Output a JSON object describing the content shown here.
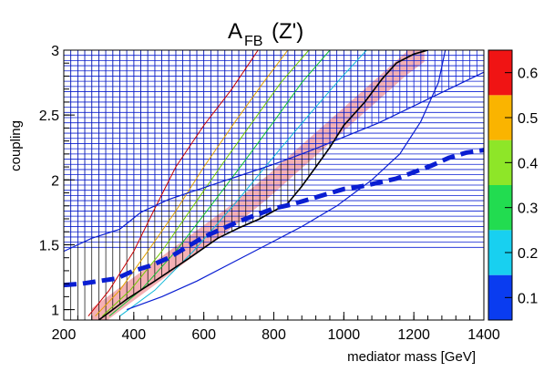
{
  "chart_data": {
    "type": "heatmap",
    "title": "A",
    "title_subscript": "FB",
    "title_suffix": " (Z')",
    "xlabel": "mediator mass [GeV]",
    "ylabel": "coupling",
    "xlim": [
      200,
      1400
    ],
    "ylim": [
      0.92,
      3.0
    ],
    "x_ticks": [
      200,
      400,
      600,
      800,
      1000,
      1200,
      1400
    ],
    "y_ticks": [
      1,
      1.5,
      2,
      2.5,
      3
    ],
    "x_tick_labels": [
      "200",
      "400",
      "600",
      "800",
      "1000",
      "1200",
      "1400"
    ],
    "y_tick_labels": [
      "1",
      "1.5",
      "2",
      "2.5",
      "3"
    ],
    "colorbar": {
      "ticks": [
        0.1,
        0.2,
        0.3,
        0.4,
        0.5,
        0.6
      ],
      "tick_labels": [
        "0.1",
        "0.2",
        "0.3",
        "0.4",
        "0.5",
        "0.6"
      ],
      "range": [
        0.05,
        0.65
      ],
      "bands": [
        {
          "from": 0.05,
          "to": 0.15,
          "color": "#0a3cf0"
        },
        {
          "from": 0.15,
          "to": 0.25,
          "color": "#18d0f0"
        },
        {
          "from": 0.25,
          "to": 0.35,
          "color": "#22dc50"
        },
        {
          "from": 0.35,
          "to": 0.45,
          "color": "#8ee628"
        },
        {
          "from": 0.45,
          "to": 0.55,
          "color": "#fab400"
        },
        {
          "from": 0.55,
          "to": 0.65,
          "color": "#f01414"
        }
      ]
    },
    "contour_lines": [
      {
        "level": 0.6,
        "color": "#c80000",
        "points": [
          [
            270,
            0.95
          ],
          [
            330,
            1.15
          ],
          [
            400,
            1.45
          ],
          [
            460,
            1.78
          ],
          [
            520,
            2.1
          ],
          [
            600,
            2.42
          ],
          [
            680,
            2.7
          ],
          [
            755,
            3.0
          ]
        ]
      },
      {
        "level": 0.5,
        "color": "#e0a000",
        "points": [
          [
            290,
            0.95
          ],
          [
            360,
            1.15
          ],
          [
            440,
            1.45
          ],
          [
            520,
            1.76
          ],
          [
            600,
            2.1
          ],
          [
            690,
            2.45
          ],
          [
            770,
            2.75
          ],
          [
            840,
            3.0
          ]
        ]
      },
      {
        "level": 0.4,
        "color": "#70c800",
        "points": [
          [
            310,
            0.95
          ],
          [
            390,
            1.15
          ],
          [
            480,
            1.45
          ],
          [
            570,
            1.8
          ],
          [
            660,
            2.15
          ],
          [
            740,
            2.45
          ],
          [
            820,
            2.75
          ],
          [
            900,
            3.0
          ]
        ]
      },
      {
        "level": 0.3,
        "color": "#10c030",
        "points": [
          [
            330,
            0.95
          ],
          [
            420,
            1.15
          ],
          [
            520,
            1.45
          ],
          [
            620,
            1.8
          ],
          [
            710,
            2.12
          ],
          [
            800,
            2.45
          ],
          [
            880,
            2.75
          ],
          [
            960,
            3.0
          ]
        ]
      },
      {
        "level": 0.2,
        "color": "#10b8d8",
        "points": [
          [
            360,
            0.95
          ],
          [
            460,
            1.15
          ],
          [
            570,
            1.45
          ],
          [
            690,
            1.82
          ],
          [
            800,
            2.18
          ],
          [
            900,
            2.5
          ],
          [
            990,
            2.78
          ],
          [
            1065,
            3.0
          ]
        ]
      }
    ],
    "observed_limit": {
      "color": "#000000",
      "points": [
        [
          300,
          0.92
        ],
        [
          380,
          1.08
        ],
        [
          460,
          1.22
        ],
        [
          560,
          1.4
        ],
        [
          640,
          1.55
        ],
        [
          700,
          1.63
        ],
        [
          760,
          1.7
        ],
        [
          840,
          1.82
        ],
        [
          880,
          1.95
        ],
        [
          920,
          2.1
        ],
        [
          960,
          2.25
        ],
        [
          1000,
          2.42
        ],
        [
          1060,
          2.6
        ],
        [
          1110,
          2.78
        ],
        [
          1150,
          2.9
        ],
        [
          1200,
          2.97
        ],
        [
          1240,
          3.0
        ]
      ]
    },
    "expected_band": {
      "color": "#f4b0b4",
      "center": [
        [
          280,
          0.92
        ],
        [
          380,
          1.12
        ],
        [
          480,
          1.32
        ],
        [
          580,
          1.52
        ],
        [
          680,
          1.72
        ],
        [
          780,
          1.94
        ],
        [
          880,
          2.18
        ],
        [
          980,
          2.42
        ],
        [
          1080,
          2.66
        ],
        [
          1180,
          2.9
        ],
        [
          1230,
          3.0
        ]
      ],
      "half_width": 0.09
    },
    "limit_line_1": {
      "color": "#0a1ed2",
      "points": [
        [
          200,
          1.45
        ],
        [
          280,
          1.55
        ],
        [
          360,
          1.62
        ],
        [
          420,
          1.75
        ],
        [
          500,
          1.85
        ],
        [
          600,
          1.94
        ],
        [
          700,
          2.03
        ],
        [
          800,
          2.12
        ],
        [
          900,
          2.22
        ],
        [
          1000,
          2.33
        ],
        [
          1100,
          2.44
        ],
        [
          1200,
          2.57
        ],
        [
          1300,
          2.7
        ],
        [
          1400,
          2.83
        ]
      ]
    },
    "limit_line_2": {
      "color": "#0a1ed2",
      "points": [
        [
          380,
          1.0
        ],
        [
          480,
          1.1
        ],
        [
          580,
          1.22
        ],
        [
          680,
          1.36
        ],
        [
          780,
          1.5
        ],
        [
          880,
          1.64
        ],
        [
          980,
          1.8
        ],
        [
          1080,
          2.0
        ],
        [
          1160,
          2.2
        ],
        [
          1220,
          2.45
        ],
        [
          1270,
          2.75
        ],
        [
          1290,
          3.0
        ]
      ]
    },
    "dashed_limit": {
      "color": "#0a1ed2",
      "points": [
        [
          200,
          1.19
        ],
        [
          250,
          1.2
        ],
        [
          300,
          1.22
        ],
        [
          350,
          1.24
        ],
        [
          400,
          1.3
        ],
        [
          450,
          1.34
        ],
        [
          500,
          1.4
        ],
        [
          550,
          1.48
        ],
        [
          600,
          1.56
        ],
        [
          650,
          1.62
        ],
        [
          700,
          1.68
        ],
        [
          750,
          1.73
        ],
        [
          800,
          1.78
        ],
        [
          850,
          1.81
        ],
        [
          900,
          1.85
        ],
        [
          950,
          1.89
        ],
        [
          1000,
          1.93
        ],
        [
          1050,
          1.95
        ],
        [
          1100,
          1.98
        ],
        [
          1150,
          2.01
        ],
        [
          1200,
          2.06
        ],
        [
          1250,
          2.11
        ],
        [
          1300,
          2.17
        ],
        [
          1350,
          2.21
        ],
        [
          1400,
          2.23
        ]
      ]
    },
    "hatch_boundary": [
      [
        200,
        1.45
      ],
      [
        280,
        1.55
      ],
      [
        360,
        1.62
      ],
      [
        420,
        1.75
      ],
      [
        500,
        1.85
      ],
      [
        600,
        1.94
      ],
      [
        700,
        2.03
      ],
      [
        800,
        2.12
      ],
      [
        900,
        2.22
      ],
      [
        1000,
        2.33
      ],
      [
        1100,
        2.44
      ],
      [
        1200,
        2.57
      ],
      [
        1300,
        2.7
      ],
      [
        1400,
        2.83
      ]
    ],
    "hatch_vertical_lower": [
      [
        300,
        0.92
      ],
      [
        380,
        1.08
      ],
      [
        460,
        1.22
      ],
      [
        560,
        1.4
      ],
      [
        640,
        1.55
      ],
      [
        700,
        1.63
      ],
      [
        760,
        1.7
      ],
      [
        840,
        1.82
      ],
      [
        880,
        1.95
      ],
      [
        920,
        2.1
      ],
      [
        960,
        2.25
      ],
      [
        1000,
        2.42
      ],
      [
        1060,
        2.6
      ],
      [
        1110,
        2.78
      ],
      [
        1150,
        2.9
      ],
      [
        1200,
        2.97
      ],
      [
        1240,
        3.0
      ]
    ],
    "grid": false
  }
}
